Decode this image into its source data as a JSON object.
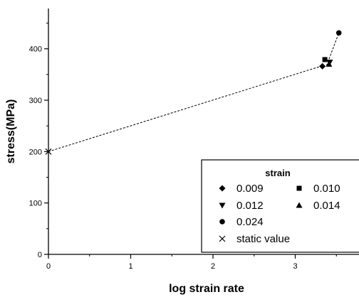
{
  "chart_data": {
    "type": "scatter",
    "title": "",
    "xlabel": "log strain rate",
    "ylabel": "stress(MPa)",
    "xlim": [
      0,
      3.8
    ],
    "ylim": [
      0,
      460
    ],
    "x_ticks": [
      0,
      1,
      2,
      3
    ],
    "y_ticks": [
      0,
      100,
      200,
      300,
      400
    ],
    "grid": false,
    "legend_title": "strain",
    "legend_position": "bottom-right",
    "series": [
      {
        "name": "0.009",
        "marker": "diamond",
        "points": [
          {
            "x": 3.33,
            "y": 366
          }
        ]
      },
      {
        "name": "0.010",
        "marker": "square",
        "points": [
          {
            "x": 3.36,
            "y": 379
          }
        ]
      },
      {
        "name": "0.012",
        "marker": "triangle-down",
        "points": [
          {
            "x": 3.42,
            "y": 374
          }
        ]
      },
      {
        "name": "0.014",
        "marker": "triangle-up",
        "points": [
          {
            "x": 3.41,
            "y": 370
          }
        ]
      },
      {
        "name": "0.024",
        "marker": "circle",
        "points": [
          {
            "x": 3.53,
            "y": 431
          }
        ]
      },
      {
        "name": "static value",
        "marker": "cross",
        "points": [
          {
            "x": 0,
            "y": 200
          }
        ]
      }
    ],
    "fit_lines": [
      {
        "style": "dashed",
        "points": [
          {
            "x": 0,
            "y": 200
          },
          {
            "x": 3.35,
            "y": 368
          }
        ]
      },
      {
        "style": "dashed",
        "points": [
          {
            "x": 3.38,
            "y": 367
          },
          {
            "x": 3.53,
            "y": 431
          }
        ]
      }
    ]
  }
}
